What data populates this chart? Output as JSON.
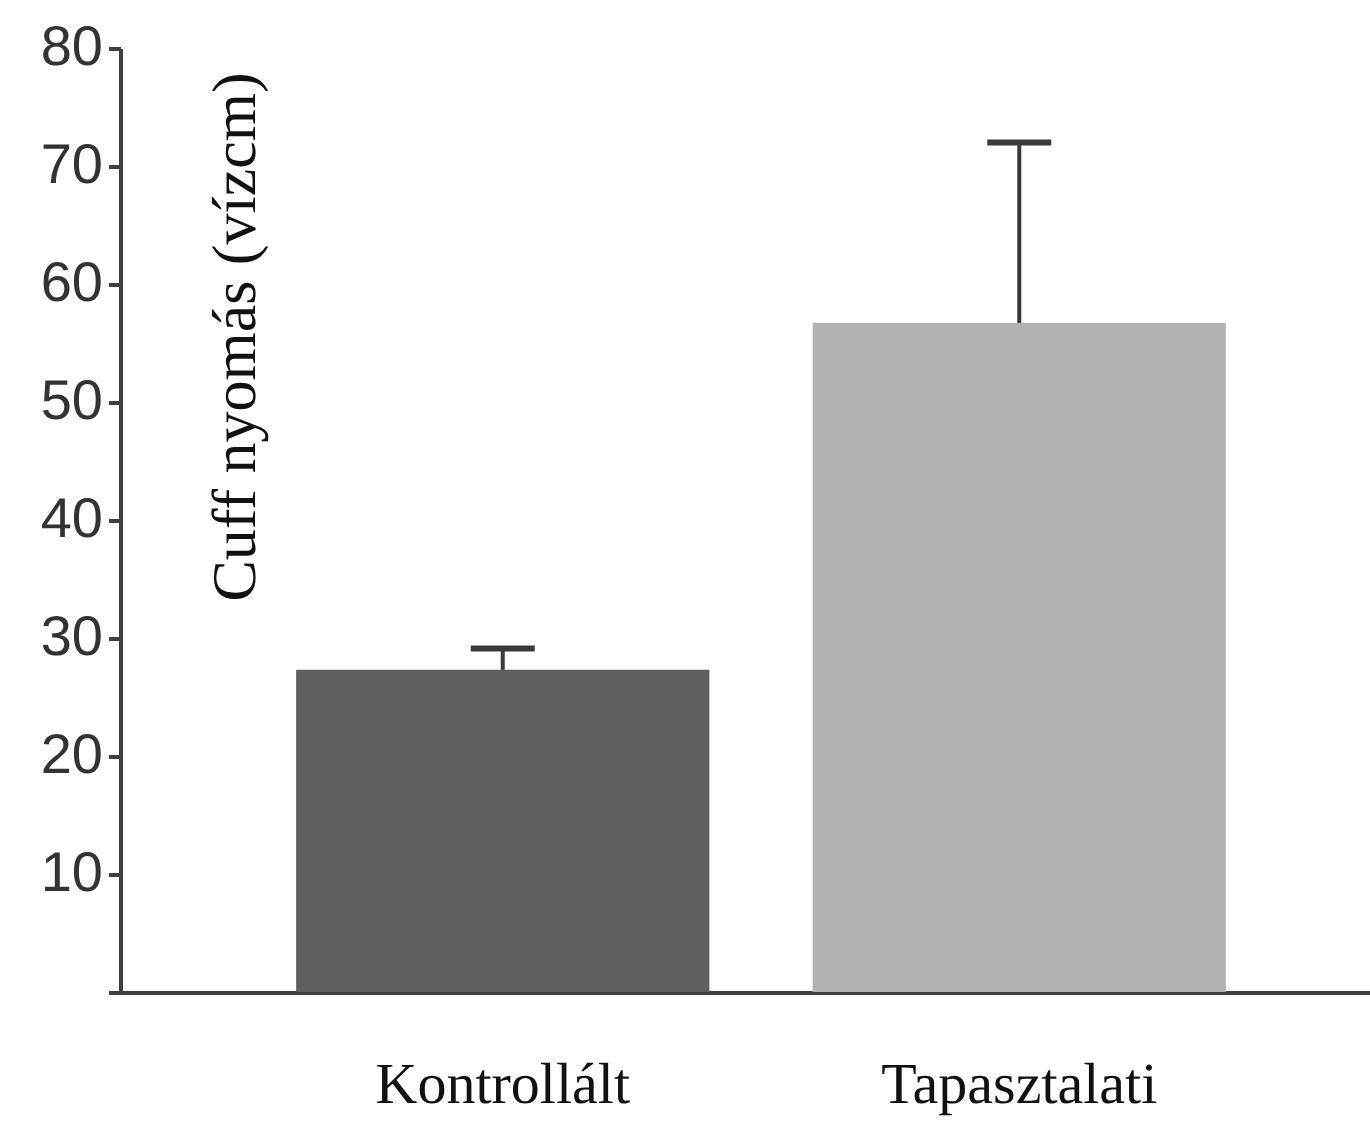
{
  "chart_data": {
    "type": "bar",
    "ylabel": "Cuff nyomás (vízcm)",
    "categories": [
      "Kontrollált",
      "Tapasztalati"
    ],
    "values": [
      27.3,
      56.7
    ],
    "colors": [
      "#5f5f5f",
      "#b2b2b2"
    ],
    "errors": [
      [
        27.3,
        29.1
      ],
      [
        56.7,
        72
      ]
    ],
    "ylim": [
      0,
      80
    ],
    "yticks": [
      {
        "value": 0,
        "label": null
      },
      10,
      20,
      30,
      40,
      50,
      60,
      70,
      80
    ]
  }
}
